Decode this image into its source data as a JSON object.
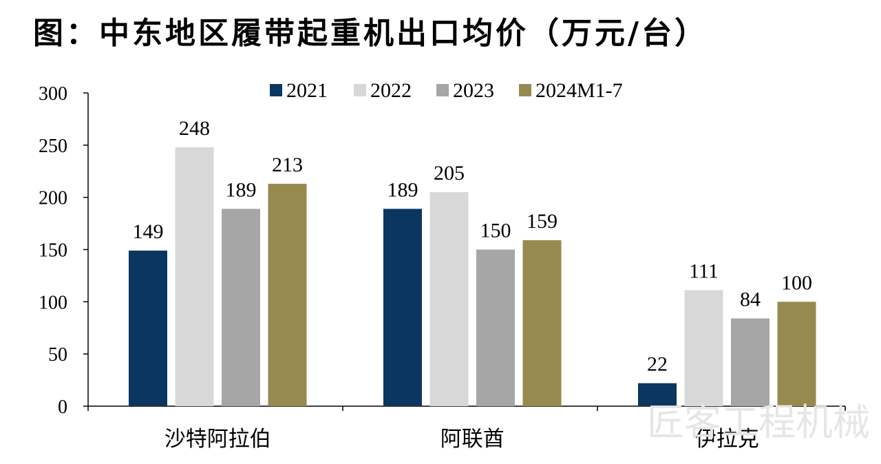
{
  "title": "图：中东地区履带起重机出口均价（万元/台）",
  "watermark": "匠客工程机械",
  "colors": {
    "2021": "#0b365f",
    "2022": "#d8d8d8",
    "2023": "#a6a6a6",
    "2024M1-7": "#978a4e"
  },
  "chart_data": {
    "type": "bar",
    "categories": [
      "沙特阿拉伯",
      "阿联酋",
      "伊拉克"
    ],
    "series": [
      {
        "name": "2021",
        "values": [
          149,
          189,
          22
        ]
      },
      {
        "name": "2022",
        "values": [
          248,
          205,
          111
        ]
      },
      {
        "name": "2023",
        "values": [
          189,
          150,
          84
        ]
      },
      {
        "name": "2024M1-7",
        "values": [
          213,
          159,
          100
        ]
      }
    ],
    "y_ticks": [
      0,
      50,
      100,
      150,
      200,
      250,
      300
    ],
    "ylim": [
      0,
      300
    ],
    "legend_position": "top",
    "grid": false
  }
}
